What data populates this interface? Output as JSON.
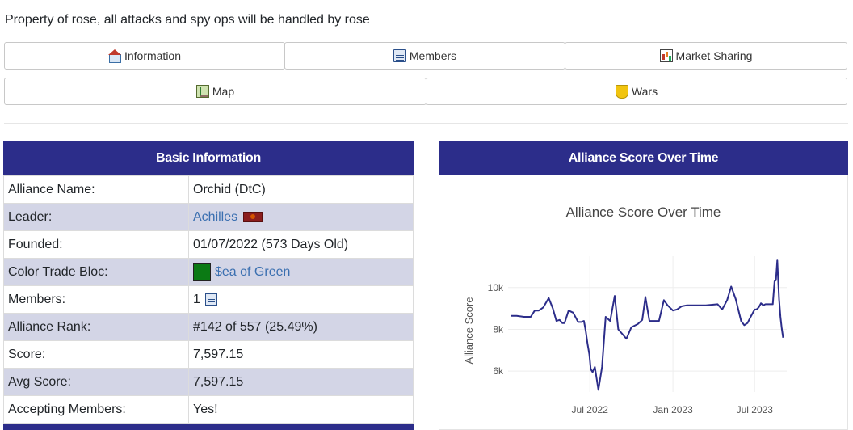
{
  "description": "Property of rose, all attacks and spy ops will be handled by rose",
  "nav": {
    "row1": [
      {
        "label": "Information",
        "icon": "house-icon"
      },
      {
        "label": "Members",
        "icon": "list-icon"
      },
      {
        "label": "Market Sharing",
        "icon": "chart-icon"
      }
    ],
    "row2": [
      {
        "label": "Map",
        "icon": "map-icon"
      },
      {
        "label": "Wars",
        "icon": "shield-icon"
      }
    ]
  },
  "basic_info": {
    "title": "Basic Information",
    "rows": {
      "alliance_name": {
        "label": "Alliance Name:",
        "value": "Orchid (DtC)"
      },
      "leader": {
        "label": "Leader:",
        "value": "Achilles"
      },
      "founded": {
        "label": "Founded:",
        "value": "01/07/2022 (573 Days Old)"
      },
      "color_bloc": {
        "label": "Color Trade Bloc:",
        "value": "$ea of Green",
        "color": "#0b7a14"
      },
      "members": {
        "label": "Members:",
        "value": "1"
      },
      "rank": {
        "label": "Alliance Rank:",
        "value": "#142 of 557 (25.49%)"
      },
      "score": {
        "label": "Score:",
        "value": "7,597.15"
      },
      "avg_score": {
        "label": "Avg Score:",
        "value": "7,597.15"
      },
      "accepting": {
        "label": "Accepting Members:",
        "value": "Yes!"
      }
    }
  },
  "score_panel": {
    "title": "Alliance Score Over Time"
  },
  "chart_data": {
    "type": "line",
    "title": "Alliance Score Over Time",
    "ylabel": "Alliance Score",
    "xlabel": "",
    "x_ticks": [
      "Jul 2022",
      "Jan 2023",
      "Jul 2023"
    ],
    "y_ticks": [
      "6k",
      "8k",
      "10k"
    ],
    "ylim": [
      5000,
      11500
    ],
    "grid": true,
    "color": "#2c2d8a",
    "series": [
      {
        "x": [
          "2022-01-07",
          "2022-01-20",
          "2022-02-05",
          "2022-02-20",
          "2022-03-01",
          "2022-03-10",
          "2022-03-20",
          "2022-04-01",
          "2022-04-10",
          "2022-04-18",
          "2022-04-25",
          "2022-05-01",
          "2022-05-06",
          "2022-05-15",
          "2022-05-25",
          "2022-06-05",
          "2022-06-12",
          "2022-06-18",
          "2022-06-22",
          "2022-06-26",
          "2022-06-30",
          "2022-07-03",
          "2022-07-07",
          "2022-07-12",
          "2022-07-20",
          "2022-07-28",
          "2022-08-05",
          "2022-08-15",
          "2022-08-25",
          "2022-09-02",
          "2022-09-10",
          "2022-09-20",
          "2022-10-01",
          "2022-10-15",
          "2022-10-25",
          "2022-11-01",
          "2022-11-10",
          "2022-11-20",
          "2022-12-01",
          "2022-12-12",
          "2022-12-20",
          "2023-01-01",
          "2023-01-10",
          "2023-01-20",
          "2023-02-01",
          "2023-02-15",
          "2023-03-15",
          "2023-04-10",
          "2023-04-20",
          "2023-05-01",
          "2023-05-10",
          "2023-05-20",
          "2023-06-01",
          "2023-06-08",
          "2023-06-15",
          "2023-06-22",
          "2023-07-01",
          "2023-07-05",
          "2023-07-10",
          "2023-07-15",
          "2023-07-20",
          "2023-07-25",
          "2023-08-01",
          "2023-08-10",
          "2023-08-14",
          "2023-08-17",
          "2023-08-20",
          "2023-08-24",
          "2023-08-27",
          "2023-08-30",
          "2023-09-02"
        ],
        "y": [
          8650,
          8650,
          8600,
          8600,
          8900,
          8900,
          9050,
          9500,
          9000,
          8400,
          8450,
          8300,
          8300,
          8900,
          8800,
          8350,
          8350,
          8400,
          7900,
          7300,
          6800,
          6100,
          5950,
          6200,
          5100,
          6200,
          8600,
          8400,
          9600,
          8000,
          7800,
          7550,
          8100,
          8250,
          8450,
          9550,
          8400,
          8400,
          8400,
          9400,
          9150,
          8900,
          8950,
          9100,
          9150,
          9150,
          9150,
          9200,
          8950,
          9400,
          10050,
          9450,
          8400,
          8200,
          8300,
          8600,
          8950,
          8950,
          9050,
          9250,
          9150,
          9200,
          9200,
          9200,
          10300,
          10350,
          11300,
          9450,
          8600,
          8050,
          7600
        ]
      }
    ]
  }
}
